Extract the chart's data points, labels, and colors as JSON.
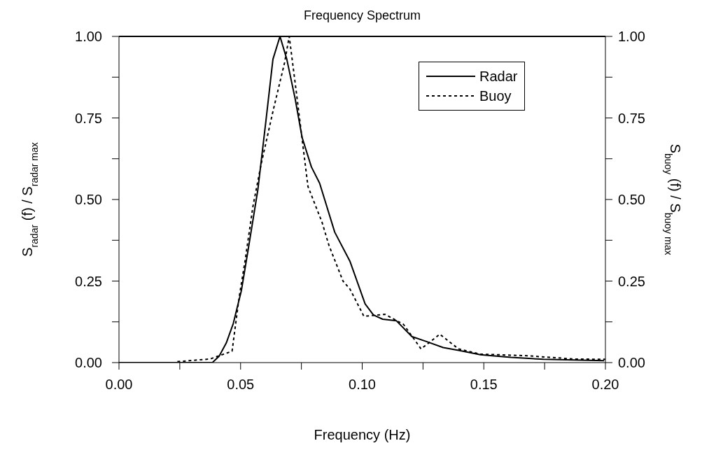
{
  "chart_data": {
    "type": "line",
    "title": "Frequency Spectrum",
    "xlabel": "Frequency (Hz)",
    "ylabel": "S$_{radar}$ (f) / S$_{radar max}$",
    "y2label": "S$_{buoy}$ (f) / S$_{buoy max}$",
    "xlim": [
      0,
      0.2
    ],
    "xticks": [
      {
        "value": 0,
        "label": "0.00"
      },
      {
        "value": 0.025,
        "label": null
      },
      {
        "value": 0.05,
        "label": "0.05"
      },
      {
        "value": 0.075,
        "label": null
      },
      {
        "value": 0.1,
        "label": "0.10"
      },
      {
        "value": 0.125,
        "label": null
      },
      {
        "value": 0.15,
        "label": "0.15"
      },
      {
        "value": 0.175,
        "label": null
      },
      {
        "value": 0.2,
        "label": "0.20"
      }
    ],
    "ylim": [
      0,
      1
    ],
    "yticks": [
      {
        "value": 0,
        "label": "0.00"
      },
      {
        "value": 0.125,
        "label": null
      },
      {
        "value": 0.25,
        "label": "0.25"
      },
      {
        "value": 0.375,
        "label": null
      },
      {
        "value": 0.5,
        "label": "0.50"
      },
      {
        "value": 0.625,
        "label": null
      },
      {
        "value": 0.75,
        "label": "0.75"
      },
      {
        "value": 0.875,
        "label": null
      },
      {
        "value": 1,
        "label": "1.00"
      }
    ],
    "y2lim": [
      0,
      1
    ],
    "y2ticks": [
      {
        "value": 0,
        "label": "0.00"
      },
      {
        "value": 0.125,
        "label": null
      },
      {
        "value": 0.25,
        "label": "0.25"
      },
      {
        "value": 0.375,
        "label": null
      },
      {
        "value": 0.5,
        "label": "0.50"
      },
      {
        "value": 0.625,
        "label": null
      },
      {
        "value": 0.75,
        "label": "0.75"
      },
      {
        "value": 0.875,
        "label": null
      },
      {
        "value": 1,
        "label": "1.00"
      }
    ],
    "grid": false,
    "legend": "top right",
    "marker": "none",
    "series": [
      {
        "name": "Radar",
        "color": "#000000",
        "line_style": "solid",
        "x": [
          0,
          0.0384,
          0.0412,
          0.0441,
          0.047,
          0.0503,
          0.0532,
          0.0571,
          0.0604,
          0.0633,
          0.0662,
          0.069,
          0.0724,
          0.0753,
          0.0791,
          0.0825,
          0.0887,
          0.095,
          0.1012,
          0.1046,
          0.1084,
          0.1141,
          0.1204,
          0.1266,
          0.1333,
          0.14,
          0.1486,
          0.1612,
          0.1746,
          0.1995
        ],
        "values": [
          0,
          0,
          0.02,
          0.06,
          0.12,
          0.22,
          0.35,
          0.53,
          0.74,
          0.93,
          1.0,
          0.93,
          0.81,
          0.69,
          0.6,
          0.55,
          0.4,
          0.31,
          0.18,
          0.146,
          0.133,
          0.128,
          0.08,
          0.064,
          0.046,
          0.037,
          0.024,
          0.016,
          0.01,
          0.006
        ]
      },
      {
        "name": "Buoy",
        "color": "#000000",
        "line_style": "dashed",
        "axis": "y2",
        "x": [
          0.024,
          0.0374,
          0.0465,
          0.0494,
          0.0518,
          0.0551,
          0.0585,
          0.0633,
          0.0681,
          0.07,
          0.0729,
          0.0777,
          0.0835,
          0.0863,
          0.0921,
          0.095,
          0.1007,
          0.1094,
          0.117,
          0.1242,
          0.1319,
          0.1396,
          0.1486,
          0.1678,
          0.1871,
          0.2
        ],
        "values": [
          0.003,
          0.011,
          0.035,
          0.2,
          0.31,
          0.48,
          0.61,
          0.77,
          0.92,
          1.0,
          0.83,
          0.54,
          0.43,
          0.36,
          0.25,
          0.225,
          0.142,
          0.148,
          0.117,
          0.042,
          0.087,
          0.042,
          0.026,
          0.021,
          0.011,
          0.01
        ]
      }
    ]
  }
}
